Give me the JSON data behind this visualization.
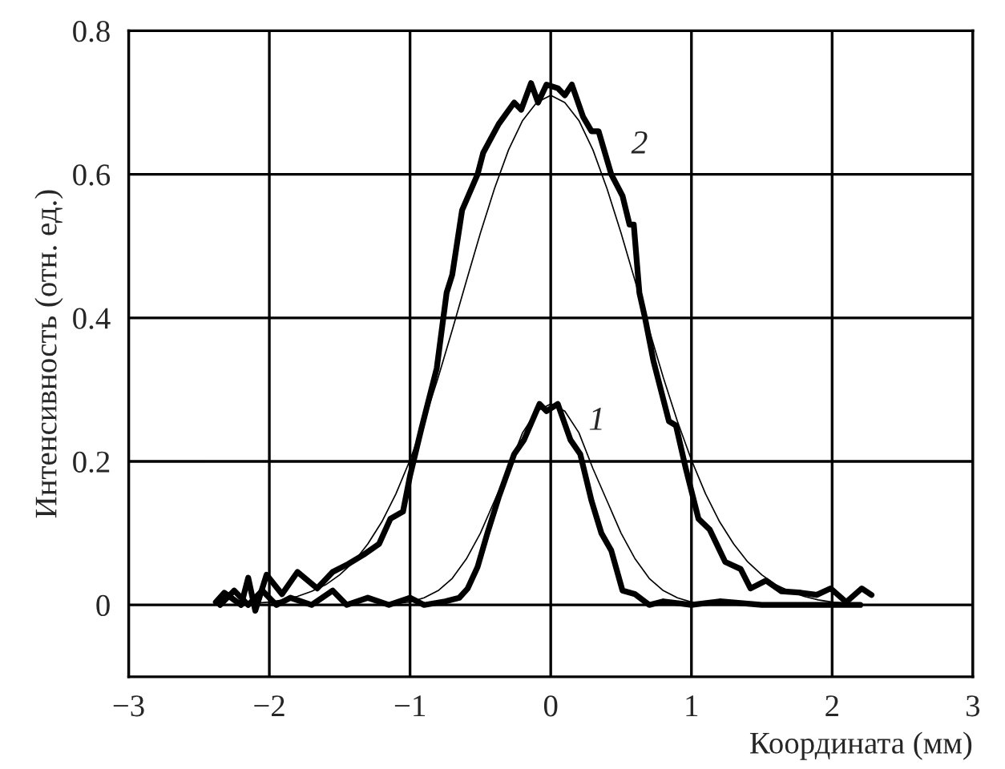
{
  "chart_data": {
    "type": "line",
    "xlabel": "Координата (мм)",
    "ylabel": "Интенсивность (отн. ед.)",
    "xlim": [
      -3,
      3
    ],
    "ylim": [
      -0.1,
      0.8
    ],
    "xticks": [
      {
        "value": -3,
        "label": "−3"
      },
      {
        "value": -2,
        "label": "−2"
      },
      {
        "value": -1,
        "label": "−1"
      },
      0,
      1,
      2,
      3
    ],
    "yticks": [
      0,
      0.2,
      0.4,
      0.6,
      0.8
    ],
    "grid": true,
    "line_style": "solid",
    "marker": "none",
    "series": [
      {
        "name": "1",
        "color": "#000000",
        "x": [
          -2.35,
          -2.25,
          -2.15,
          -2.05,
          -1.95,
          -1.85,
          -1.7,
          -1.55,
          -1.45,
          -1.3,
          -1.15,
          -1.0,
          -0.9,
          -0.75,
          -0.65,
          -0.59,
          -0.52,
          -0.45,
          -0.37,
          -0.26,
          -0.19,
          -0.08,
          -0.03,
          0.05,
          0.14,
          0.21,
          0.29,
          0.36,
          0.43,
          0.51,
          0.6,
          0.7,
          0.8,
          1.0,
          1.2,
          1.5,
          2.0,
          2.2
        ],
        "values": [
          0.0,
          0.02,
          0.0,
          0.02,
          0.0,
          0.01,
          0.0,
          0.02,
          0.0,
          0.01,
          0.0,
          0.01,
          0.0,
          0.005,
          0.01,
          0.023,
          0.053,
          0.1,
          0.15,
          0.21,
          0.23,
          0.28,
          0.27,
          0.28,
          0.23,
          0.21,
          0.145,
          0.1,
          0.076,
          0.02,
          0.015,
          0.0,
          0.005,
          0.0,
          0.005,
          0.0,
          0.0,
          0.0
        ]
      },
      {
        "color": "#000000",
        "x": [
          -2.3,
          -1.2,
          -1.0,
          -0.9,
          -0.8,
          -0.7,
          -0.6,
          -0.5,
          -0.4,
          -0.3,
          -0.2,
          -0.1,
          0,
          0.1,
          0.2,
          0.3,
          0.4,
          0.5,
          0.6,
          0.7,
          0.8,
          0.9,
          1.0,
          1.2,
          2.2
        ],
        "values": [
          0.0,
          0.0,
          0.004,
          0.01,
          0.02,
          0.037,
          0.064,
          0.1,
          0.145,
          0.19,
          0.24,
          0.27,
          0.28,
          0.27,
          0.24,
          0.19,
          0.145,
          0.1,
          0.064,
          0.037,
          0.02,
          0.01,
          0.004,
          0.0,
          0.0
        ]
      },
      {
        "name": "2",
        "color": "#000000",
        "x": [
          -2.38,
          -2.32,
          -2.2,
          -2.15,
          -2.1,
          -2.02,
          -1.91,
          -1.8,
          -1.66,
          -1.55,
          -1.44,
          -1.33,
          -1.22,
          -1.14,
          -1.05,
          -1.0,
          -0.92,
          -0.81,
          -0.74,
          -0.7,
          -0.63,
          -0.52,
          -0.48,
          -0.37,
          -0.26,
          -0.21,
          -0.14,
          -0.09,
          -0.03,
          0.05,
          0.1,
          0.15,
          0.23,
          0.29,
          0.34,
          0.43,
          0.51,
          0.56,
          0.59,
          0.63,
          0.67,
          0.73,
          0.84,
          0.89,
          0.96,
          1.05,
          1.13,
          1.24,
          1.35,
          1.42,
          1.53,
          1.64,
          1.78,
          1.89,
          1.99,
          2.1,
          2.21,
          2.28
        ],
        "values": [
          0.004,
          0.017,
          0.0,
          0.038,
          -0.008,
          0.042,
          0.015,
          0.046,
          0.023,
          0.046,
          0.057,
          0.07,
          0.085,
          0.12,
          0.13,
          0.18,
          0.245,
          0.33,
          0.435,
          0.46,
          0.55,
          0.6,
          0.63,
          0.67,
          0.7,
          0.69,
          0.727,
          0.7,
          0.725,
          0.72,
          0.71,
          0.725,
          0.68,
          0.66,
          0.66,
          0.6,
          0.57,
          0.53,
          0.53,
          0.435,
          0.4,
          0.34,
          0.256,
          0.25,
          0.19,
          0.12,
          0.105,
          0.06,
          0.05,
          0.023,
          0.034,
          0.019,
          0.017,
          0.014,
          0.023,
          0.004,
          0.023,
          0.014
        ]
      },
      {
        "color": "#000000",
        "x": [
          -2.2,
          -2.0,
          -1.9,
          -1.8,
          -1.7,
          -1.6,
          -1.5,
          -1.4,
          -1.3,
          -1.2,
          -1.1,
          -1.0,
          -0.9,
          -0.8,
          -0.7,
          -0.6,
          -0.5,
          -0.4,
          -0.3,
          -0.2,
          -0.1,
          0,
          0.1,
          0.2,
          0.3,
          0.4,
          0.5,
          0.6,
          0.7,
          0.8,
          0.9,
          1.0,
          1.1,
          1.2,
          1.3,
          1.4,
          1.5,
          1.6,
          1.7,
          1.8,
          1.9,
          2.0,
          2.2
        ],
        "values": [
          0.001,
          0.004,
          0.007,
          0.012,
          0.019,
          0.028,
          0.042,
          0.06,
          0.085,
          0.116,
          0.155,
          0.202,
          0.256,
          0.317,
          0.383,
          0.451,
          0.518,
          0.58,
          0.634,
          0.675,
          0.7,
          0.71,
          0.7,
          0.675,
          0.634,
          0.58,
          0.518,
          0.451,
          0.383,
          0.317,
          0.256,
          0.202,
          0.155,
          0.116,
          0.085,
          0.06,
          0.042,
          0.028,
          0.019,
          0.012,
          0.007,
          0.004,
          0.001
        ]
      }
    ]
  }
}
